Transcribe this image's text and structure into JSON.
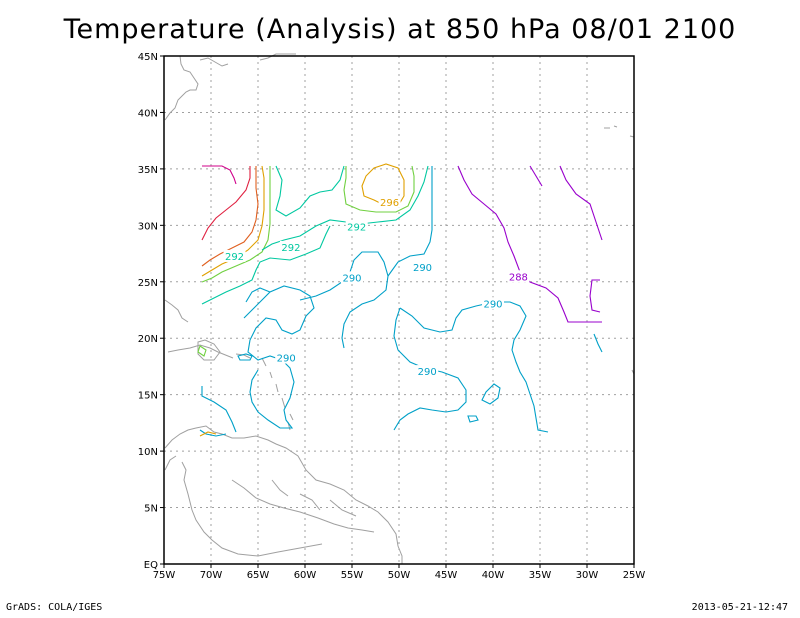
{
  "title": "Temperature (Analysis) at 850 hPa 08/01 2100",
  "footer": {
    "left": "GrADS: COLA/IGES",
    "right": "2013-05-21-12:47"
  },
  "map": {
    "lon_range": [
      -75,
      -25
    ],
    "lat_range": [
      0,
      45
    ],
    "lon_ticks": [
      {
        "v": -75,
        "label": "75W"
      },
      {
        "v": -70,
        "label": "70W"
      },
      {
        "v": -65,
        "label": "65W"
      },
      {
        "v": -60,
        "label": "60W"
      },
      {
        "v": -55,
        "label": "55W"
      },
      {
        "v": -50,
        "label": "50W"
      },
      {
        "v": -45,
        "label": "45W"
      },
      {
        "v": -40,
        "label": "40W"
      },
      {
        "v": -35,
        "label": "35W"
      },
      {
        "v": -30,
        "label": "30W"
      },
      {
        "v": -25,
        "label": "25W"
      }
    ],
    "lat_ticks": [
      {
        "v": 0,
        "label": "EQ"
      },
      {
        "v": 5,
        "label": "5N"
      },
      {
        "v": 10,
        "label": "10N"
      },
      {
        "v": 15,
        "label": "15N"
      },
      {
        "v": 20,
        "label": "20N"
      },
      {
        "v": 25,
        "label": "25N"
      },
      {
        "v": 30,
        "label": "30N"
      },
      {
        "v": 35,
        "label": "35N"
      },
      {
        "v": 40,
        "label": "40N"
      },
      {
        "v": 45,
        "label": "45N"
      }
    ],
    "grid": "dotted",
    "colors": {
      "coast": "#a0a0a0",
      "grid": "#a0a0a0",
      "c288": "#9900cc",
      "c290": "#00a0c8",
      "c292": "#00c8a0",
      "c294": "#70d040",
      "c296": "#e0a000",
      "c298": "#e06020",
      "c300": "#e02040",
      "c302": "#d0008a"
    },
    "contour_labels": [
      {
        "text": "296",
        "lon": -51.0,
        "lat": 32.0,
        "color_key": "c296"
      },
      {
        "text": "292",
        "lon": -54.5,
        "lat": 29.8,
        "color_key": "c292"
      },
      {
        "text": "292",
        "lon": -61.5,
        "lat": 28.0,
        "color_key": "c292"
      },
      {
        "text": "292",
        "lon": -67.5,
        "lat": 27.2,
        "color_key": "c292"
      },
      {
        "text": "290",
        "lon": -55.0,
        "lat": 25.3,
        "color_key": "c290"
      },
      {
        "text": "290",
        "lon": -47.5,
        "lat": 26.2,
        "color_key": "c290"
      },
      {
        "text": "288",
        "lon": -37.3,
        "lat": 25.4,
        "color_key": "c288"
      },
      {
        "text": "290",
        "lon": -40.0,
        "lat": 23.0,
        "color_key": "c290"
      },
      {
        "text": "290",
        "lon": -62.0,
        "lat": 18.2,
        "color_key": "c290"
      },
      {
        "text": "290",
        "lon": -47.0,
        "lat": 17.0,
        "color_key": "c290"
      }
    ]
  }
}
